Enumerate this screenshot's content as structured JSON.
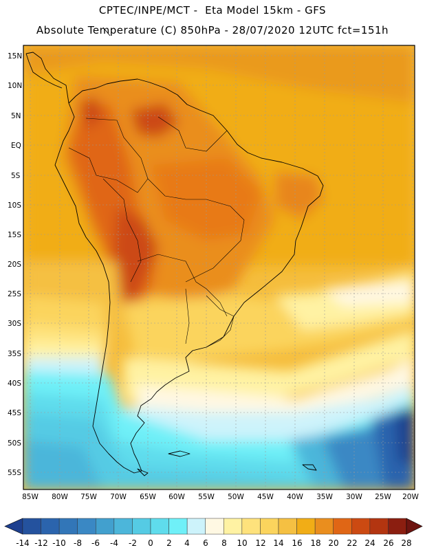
{
  "header": {
    "line1": "CPTEC/INPE/MCT -  Eta Model 15km - GFS",
    "line2": "Absolute Temperature (C) 850hPa - 28/07/2020 12UTC fct=151h"
  },
  "map": {
    "lat_ticks": [
      "15N",
      "10N",
      "5N",
      "EQ",
      "5S",
      "10S",
      "15S",
      "20S",
      "25S",
      "30S",
      "35S",
      "40S",
      "45S",
      "50S",
      "55S"
    ],
    "lon_ticks": [
      "85W",
      "80W",
      "75W",
      "70W",
      "65W",
      "60W",
      "55W",
      "50W",
      "45W",
      "40W",
      "35W",
      "30W",
      "25W",
      "20W"
    ]
  },
  "colorbar": {
    "labels": [
      "-14",
      "-12",
      "-10",
      "-8",
      "-6",
      "-4",
      "-2",
      "0",
      "2",
      "4",
      "6",
      "8",
      "10",
      "12",
      "14",
      "16",
      "18",
      "20",
      "22",
      "24",
      "26",
      "28"
    ],
    "colors": [
      "#1d3f8f",
      "#24529e",
      "#2b64ad",
      "#3276b8",
      "#3a88c4",
      "#42a0ce",
      "#4cb6da",
      "#55cbe4",
      "#5fdcec",
      "#6ff0f8",
      "#cdf3fb",
      "#fff8e3",
      "#fff2a3",
      "#fee27c",
      "#fbd45d",
      "#f5c042",
      "#f1ad16",
      "#ea8e1e",
      "#e06615",
      "#cc4a12",
      "#b33510",
      "#8b1e10",
      "#6d1410"
    ]
  }
}
